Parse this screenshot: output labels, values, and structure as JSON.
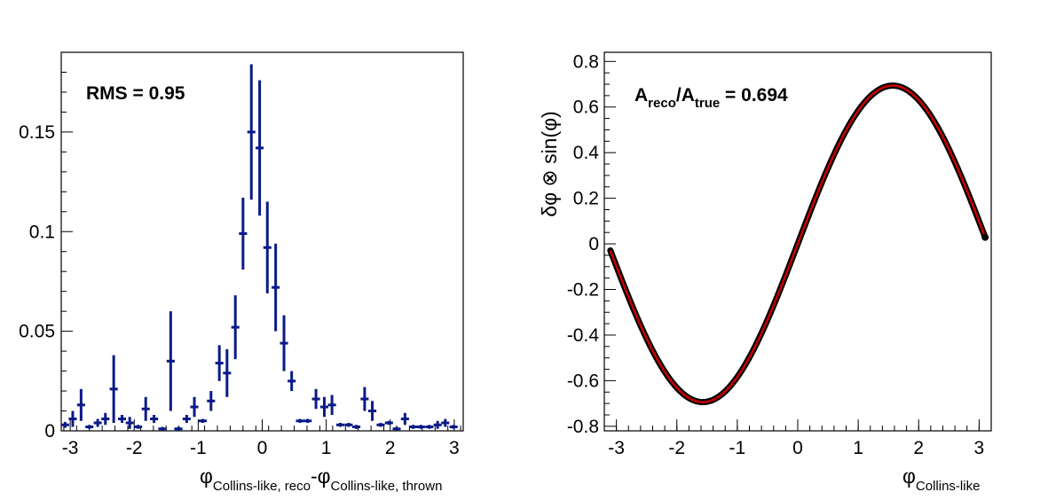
{
  "chart_data": [
    {
      "type": "scatter",
      "panel": "left",
      "annotation": "RMS = 0.95",
      "xlabel": {
        "main1": "φ",
        "sub1": "Collins-like, reco",
        "mid": "-φ",
        "sub2": "Collins-like, thrown"
      },
      "ylabel": "",
      "xlim": [
        -3.14,
        3.14
      ],
      "ylim": [
        0,
        0.19
      ],
      "xticks": [
        -3,
        -2,
        -1,
        0,
        1,
        2,
        3
      ],
      "xtick_labels": [
        "-3",
        "-2",
        "-1",
        "0",
        "1",
        "2",
        "3"
      ],
      "yticks": [
        0,
        0.05,
        0.1,
        0.15
      ],
      "ytick_labels": [
        "0",
        "0.05",
        "0.1",
        "0.15"
      ],
      "color": "#0b1a87",
      "points": [
        {
          "x": -3.08,
          "y": 0.003,
          "err": 0.0015
        },
        {
          "x": -2.96,
          "y": 0.006,
          "err": 0.004
        },
        {
          "x": -2.83,
          "y": 0.013,
          "err": 0.008
        },
        {
          "x": -2.7,
          "y": 0.002,
          "err": 0.001
        },
        {
          "x": -2.57,
          "y": 0.004,
          "err": 0.002
        },
        {
          "x": -2.45,
          "y": 0.006,
          "err": 0.003
        },
        {
          "x": -2.32,
          "y": 0.021,
          "err": 0.017
        },
        {
          "x": -2.19,
          "y": 0.006,
          "err": 0.002
        },
        {
          "x": -2.07,
          "y": 0.004,
          "err": 0.003
        },
        {
          "x": -1.94,
          "y": 0.002,
          "err": 0.001
        },
        {
          "x": -1.82,
          "y": 0.011,
          "err": 0.006
        },
        {
          "x": -1.69,
          "y": 0.006,
          "err": 0.002
        },
        {
          "x": -1.56,
          "y": 0.001,
          "err": 0.001
        },
        {
          "x": -1.43,
          "y": 0.035,
          "err": 0.025
        },
        {
          "x": -1.31,
          "y": 0.001,
          "err": 0.001
        },
        {
          "x": -1.18,
          "y": 0.006,
          "err": 0.002
        },
        {
          "x": -1.06,
          "y": 0.012,
          "err": 0.005
        },
        {
          "x": -0.93,
          "y": 0.005,
          "err": 0.001
        },
        {
          "x": -0.8,
          "y": 0.015,
          "err": 0.005
        },
        {
          "x": -0.67,
          "y": 0.034,
          "err": 0.009
        },
        {
          "x": -0.55,
          "y": 0.029,
          "err": 0.012
        },
        {
          "x": -0.42,
          "y": 0.052,
          "err": 0.016
        },
        {
          "x": -0.3,
          "y": 0.099,
          "err": 0.018
        },
        {
          "x": -0.17,
          "y": 0.15,
          "err": 0.034
        },
        {
          "x": -0.04,
          "y": 0.142,
          "err": 0.034
        },
        {
          "x": 0.08,
          "y": 0.092,
          "err": 0.023
        },
        {
          "x": 0.21,
          "y": 0.072,
          "err": 0.022
        },
        {
          "x": 0.34,
          "y": 0.044,
          "err": 0.014
        },
        {
          "x": 0.46,
          "y": 0.025,
          "err": 0.005
        },
        {
          "x": 0.59,
          "y": 0.005,
          "err": 0.001
        },
        {
          "x": 0.71,
          "y": 0.005,
          "err": 0.001
        },
        {
          "x": 0.84,
          "y": 0.016,
          "err": 0.005
        },
        {
          "x": 0.97,
          "y": 0.012,
          "err": 0.005
        },
        {
          "x": 1.09,
          "y": 0.013,
          "err": 0.005
        },
        {
          "x": 1.22,
          "y": 0.003,
          "err": 0.001
        },
        {
          "x": 1.35,
          "y": 0.003,
          "err": 0.001
        },
        {
          "x": 1.47,
          "y": 0.002,
          "err": 0.001
        },
        {
          "x": 1.6,
          "y": 0.016,
          "err": 0.006
        },
        {
          "x": 1.72,
          "y": 0.01,
          "err": 0.005
        },
        {
          "x": 1.85,
          "y": 0.003,
          "err": 0.001
        },
        {
          "x": 1.98,
          "y": 0.004,
          "err": 0.001
        },
        {
          "x": 2.1,
          "y": 0.001,
          "err": 0.001
        },
        {
          "x": 2.23,
          "y": 0.006,
          "err": 0.003
        },
        {
          "x": 2.36,
          "y": 0.002,
          "err": 0.001
        },
        {
          "x": 2.48,
          "y": 0.002,
          "err": 0.001
        },
        {
          "x": 2.61,
          "y": 0.002,
          "err": 0.001
        },
        {
          "x": 2.74,
          "y": 0.003,
          "err": 0.002
        },
        {
          "x": 2.86,
          "y": 0.004,
          "err": 0.002
        },
        {
          "x": 2.99,
          "y": 0.002,
          "err": 0.001
        }
      ]
    },
    {
      "type": "line",
      "panel": "right",
      "annotation": {
        "A1": "A",
        "sub1": "reco",
        "slash": "/A",
        "sub2": "true",
        "rest": " = 0.694"
      },
      "xlabel": {
        "main": "φ",
        "sub": "Collins-like"
      },
      "ylabel": "δφ ⊗ sin(φ)",
      "xlim": [
        -3.2,
        3.2
      ],
      "ylim": [
        -0.82,
        0.84
      ],
      "xticks": [
        -3,
        -2,
        -1,
        0,
        1,
        2,
        3
      ],
      "xtick_labels": [
        "-3",
        "-2",
        "-1",
        "0",
        "1",
        "2",
        "3"
      ],
      "yticks": [
        -0.8,
        -0.6,
        -0.4,
        -0.2,
        0,
        0.2,
        0.4,
        0.6,
        0.8
      ],
      "ytick_labels": [
        "-0.8",
        "-0.6",
        "-0.4",
        "-0.2",
        "0",
        "0.2",
        "0.4",
        "0.6",
        "0.8"
      ],
      "series": [
        {
          "name": "",
          "color": "#000000",
          "function": "0.694*sin(x)",
          "x_range": [
            -3.1,
            3.1
          ]
        },
        {
          "name": "",
          "color": "#cc0000",
          "function": "0.694*sin(x)",
          "x_range": [
            -3.1,
            3.1
          ]
        }
      ]
    }
  ]
}
